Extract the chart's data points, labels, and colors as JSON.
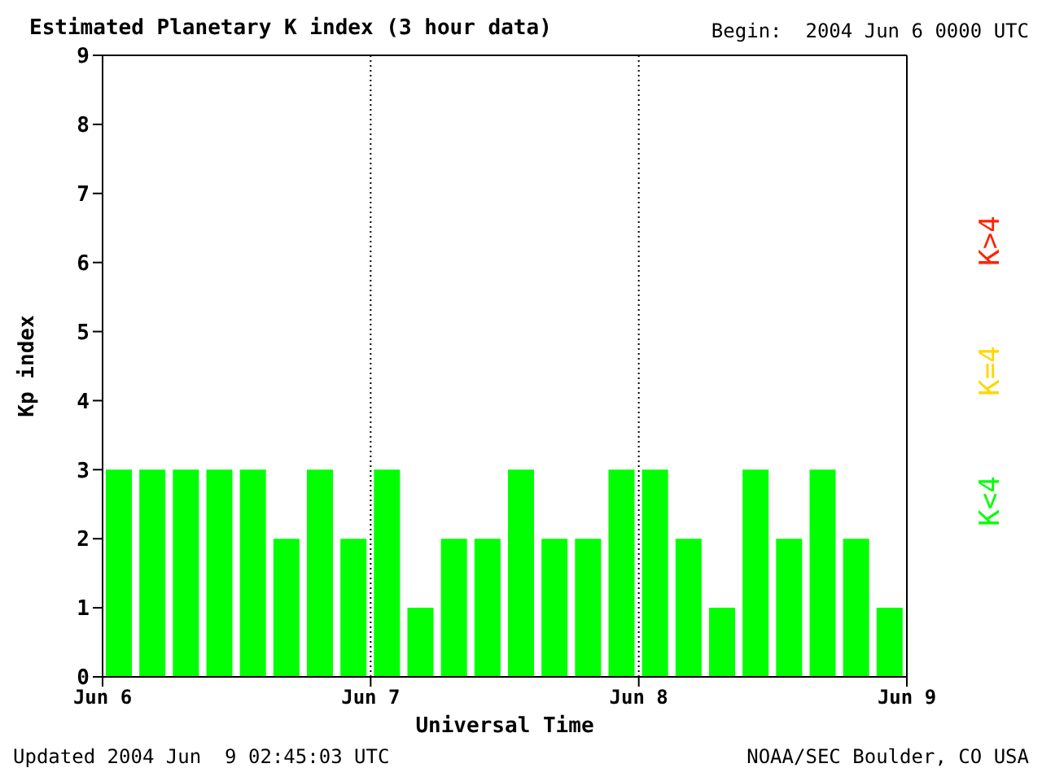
{
  "chart_data": {
    "type": "bar",
    "title": "Estimated Planetary K index (3 hour data)",
    "subtitle": "Begin:  2004 Jun 6 0000 UTC",
    "xlabel": "Universal Time",
    "ylabel": "Kp index",
    "x": [
      "2004-06-06T01:30",
      "2004-06-06T04:30",
      "2004-06-06T07:30",
      "2004-06-06T10:30",
      "2004-06-06T13:30",
      "2004-06-06T16:30",
      "2004-06-06T19:30",
      "2004-06-06T22:30",
      "2004-06-07T01:30",
      "2004-06-07T04:30",
      "2004-06-07T07:30",
      "2004-06-07T10:30",
      "2004-06-07T13:30",
      "2004-06-07T16:30",
      "2004-06-07T19:30",
      "2004-06-07T22:30",
      "2004-06-08T01:30",
      "2004-06-08T04:30",
      "2004-06-08T07:30",
      "2004-06-08T10:30",
      "2004-06-08T13:30",
      "2004-06-08T16:30",
      "2004-06-08T19:30",
      "2004-06-08T22:30"
    ],
    "series": [
      {
        "name": "K<4",
        "color": "#00ff00",
        "values": [
          3,
          3,
          3,
          3,
          3,
          2,
          3,
          2,
          3,
          1,
          2,
          2,
          3,
          2,
          2,
          3,
          3,
          2,
          1,
          3,
          2,
          3,
          2,
          1
        ]
      },
      {
        "name": "K=4",
        "color": "#ffd700",
        "values": [
          null,
          null,
          null,
          null,
          null,
          null,
          null,
          null,
          null,
          null,
          null,
          null,
          null,
          null,
          null,
          null,
          null,
          null,
          null,
          null,
          null,
          null,
          null,
          null
        ]
      },
      {
        "name": "K>4",
        "color": "#ff2200",
        "values": [
          null,
          null,
          null,
          null,
          null,
          null,
          null,
          null,
          null,
          null,
          null,
          null,
          null,
          null,
          null,
          null,
          null,
          null,
          null,
          null,
          null,
          null,
          null,
          null
        ]
      }
    ],
    "stacked": true,
    "xlim": [
      "2004-06-06T00:00",
      "2004-06-09T00:00"
    ],
    "xticks": [
      {
        "value": "2004-06-06T00:00",
        "label": "Jun 6"
      },
      {
        "value": "2004-06-07T00:00",
        "label": "Jun 7"
      },
      {
        "value": "2004-06-08T00:00",
        "label": "Jun 8"
      },
      {
        "value": "2004-06-09T00:00",
        "label": "Jun 9"
      }
    ],
    "ylim": [
      0,
      9
    ],
    "yticks": [
      0,
      1,
      2,
      3,
      4,
      5,
      6,
      7,
      8,
      9
    ],
    "legend": "right",
    "ref_lines": [
      {
        "axis": "x",
        "value": "2004-06-07T00:00",
        "color": "#000000",
        "line_style": "dotted"
      },
      {
        "axis": "x",
        "value": "2004-06-08T00:00",
        "color": "#000000",
        "line_style": "dotted"
      }
    ],
    "annotations": [
      "Updated 2004 Jun  9 02:45:03 UTC",
      "NOAA/SEC Boulder, CO USA"
    ]
  }
}
